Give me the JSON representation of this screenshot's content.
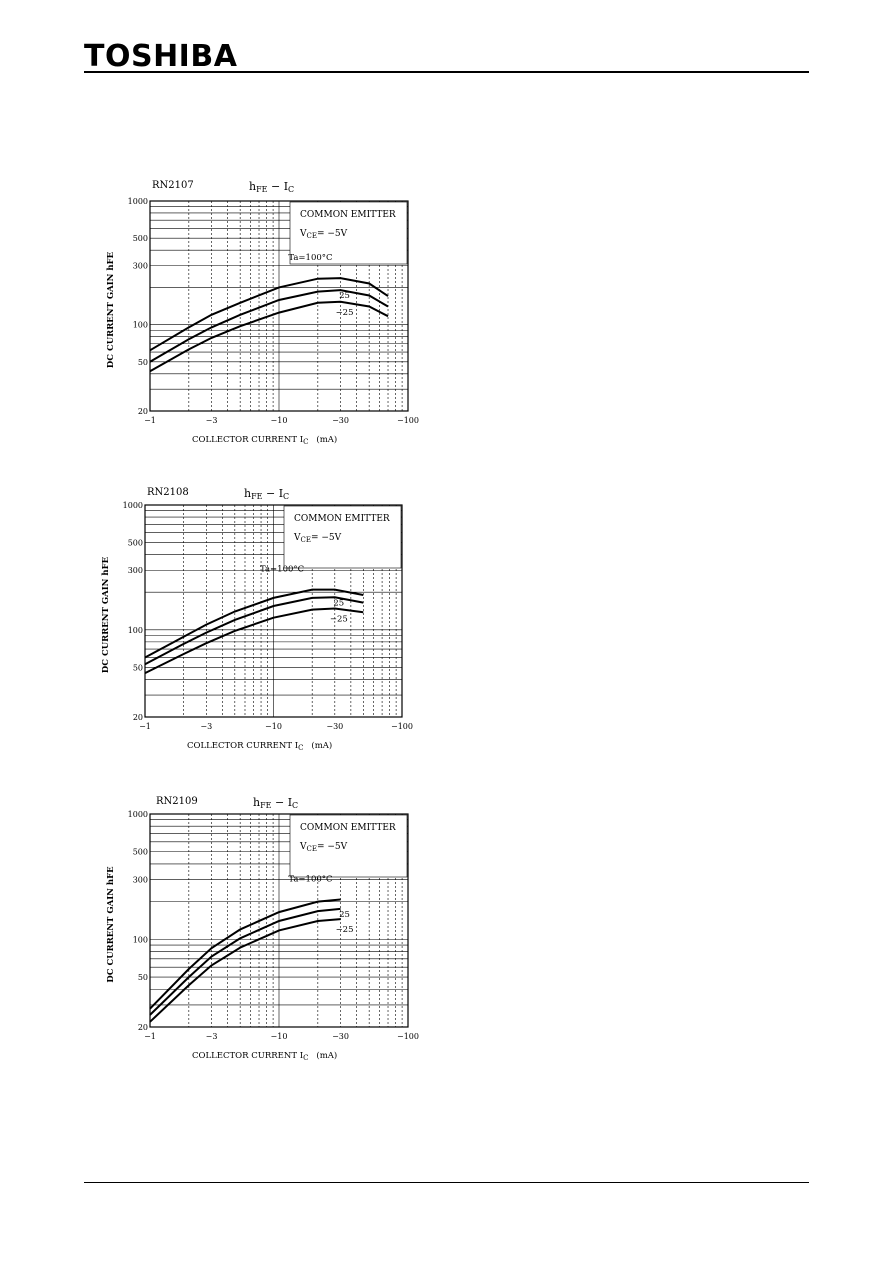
{
  "header": {
    "logo_text": "TOSHIBA"
  },
  "chart_data": [
    {
      "type": "line",
      "part": "RN2107",
      "title": "hFE − IC",
      "title_main": "h",
      "title_sub": "FE",
      "title_sep": " − I",
      "title_sub2": "C",
      "xlabel": "COLLECTOR CURRENT   I",
      "xlabel_sub": "C",
      "xlabel_unit": "(mA)",
      "ylabel": "DC CURRENT GAIN   hFE",
      "x_scale": "log",
      "y_scale": "log",
      "xlim": [
        -1,
        -100
      ],
      "ylim": [
        20,
        1000
      ],
      "x_ticks": [
        -1,
        -3,
        -10,
        -30,
        -100
      ],
      "x_tick_labels": [
        "−1",
        "−3",
        "−10",
        "−30",
        "−100"
      ],
      "y_ticks": [
        20,
        50,
        100,
        300,
        500,
        1000
      ],
      "y_tick_labels": [
        "20",
        "50",
        "100",
        "300",
        "500",
        "1000"
      ],
      "grid": true,
      "annotation_lines": [
        "COMMON EMITTER",
        "V",
        "CE",
        "= −5V"
      ],
      "series": [
        {
          "name": "Ta=100°C",
          "x": [
            -1,
            -2,
            -3,
            -5,
            -10,
            -20,
            -30,
            -50,
            -70
          ],
          "y": [
            62,
            95,
            120,
            150,
            200,
            235,
            238,
            215,
            170
          ]
        },
        {
          "name": "25",
          "x": [
            -1,
            -2,
            -3,
            -5,
            -10,
            -20,
            -30,
            -50,
            -70
          ],
          "y": [
            50,
            76,
            95,
            120,
            158,
            185,
            190,
            172,
            140
          ]
        },
        {
          "name": "−25",
          "x": [
            -1,
            -2,
            -3,
            -5,
            -10,
            -20,
            -30,
            -50,
            -70
          ],
          "y": [
            42,
            63,
            78,
            97,
            125,
            150,
            153,
            140,
            117
          ]
        }
      ],
      "series_labels": [
        "Ta=100°C",
        "25",
        "−25"
      ]
    },
    {
      "type": "line",
      "part": "RN2108",
      "title": "hFE − IC",
      "title_main": "h",
      "title_sub": "FE",
      "title_sep": " − I",
      "title_sub2": "C",
      "xlabel": "COLLECTOR CURRENT   I",
      "xlabel_sub": "C",
      "xlabel_unit": "(mA)",
      "ylabel": "DC CURRENT GAIN   hFE",
      "x_scale": "log",
      "y_scale": "log",
      "xlim": [
        -1,
        -100
      ],
      "ylim": [
        20,
        1000
      ],
      "x_ticks": [
        -1,
        -3,
        -10,
        -30,
        -100
      ],
      "x_tick_labels": [
        "−1",
        "−3",
        "−10",
        "−30",
        "−100"
      ],
      "y_ticks": [
        20,
        50,
        100,
        300,
        500,
        1000
      ],
      "y_tick_labels": [
        "20",
        "50",
        "100",
        "300",
        "500",
        "1000"
      ],
      "grid": true,
      "annotation_lines": [
        "COMMON EMITTER",
        "V",
        "CE",
        "= −5V"
      ],
      "series": [
        {
          "name": "Ta=100°C",
          "x": [
            -1,
            -2,
            -3,
            -5,
            -10,
            -20,
            -30,
            -50
          ],
          "y": [
            60,
            88,
            110,
            140,
            180,
            210,
            210,
            190
          ]
        },
        {
          "name": "25",
          "x": [
            -1,
            -2,
            -3,
            -5,
            -10,
            -20,
            -30,
            -50
          ],
          "y": [
            53,
            77,
            95,
            120,
            155,
            180,
            182,
            165
          ]
        },
        {
          "name": "−25",
          "x": [
            -1,
            -2,
            -3,
            -5,
            -10,
            -20,
            -30,
            -50
          ],
          "y": [
            45,
            64,
            78,
            98,
            125,
            145,
            148,
            138
          ]
        }
      ],
      "series_labels": [
        "Ta=100°C",
        "25",
        "−25"
      ]
    },
    {
      "type": "line",
      "part": "RN2109",
      "title": "hFE − IC",
      "title_main": "h",
      "title_sub": "FE",
      "title_sep": " − I",
      "title_sub2": "C",
      "xlabel": "COLLECTOR CURRENT   I",
      "xlabel_sub": "C",
      "xlabel_unit": "(mA)",
      "ylabel": "DC CURRENT GAIN   hFE",
      "x_scale": "log",
      "y_scale": "log",
      "xlim": [
        -1,
        -100
      ],
      "ylim": [
        20,
        1000
      ],
      "x_ticks": [
        -1,
        -3,
        -10,
        -30,
        -100
      ],
      "x_tick_labels": [
        "−1",
        "−3",
        "−10",
        "−30",
        "−100"
      ],
      "y_ticks": [
        20,
        50,
        100,
        300,
        500,
        1000
      ],
      "y_tick_labels": [
        "20",
        "50",
        "100",
        "300",
        "500",
        "1000"
      ],
      "grid": true,
      "annotation_lines": [
        "COMMON EMITTER",
        "V",
        "CE",
        "= −5V"
      ],
      "series": [
        {
          "name": "Ta=100°C",
          "x": [
            -1,
            -2,
            -3,
            -5,
            -10,
            -20,
            -30
          ],
          "y": [
            28,
            58,
            85,
            120,
            165,
            200,
            208
          ]
        },
        {
          "name": "25",
          "x": [
            -1,
            -2,
            -3,
            -5,
            -10,
            -20,
            -30
          ],
          "y": [
            25,
            50,
            73,
            102,
            140,
            168,
            175
          ]
        },
        {
          "name": "−25",
          "x": [
            -1,
            -2,
            -3,
            -5,
            -10,
            -20,
            -30
          ],
          "y": [
            22,
            43,
            62,
            86,
            118,
            140,
            145
          ]
        }
      ],
      "series_labels": [
        "Ta=100°C",
        "25",
        "−25"
      ]
    }
  ]
}
